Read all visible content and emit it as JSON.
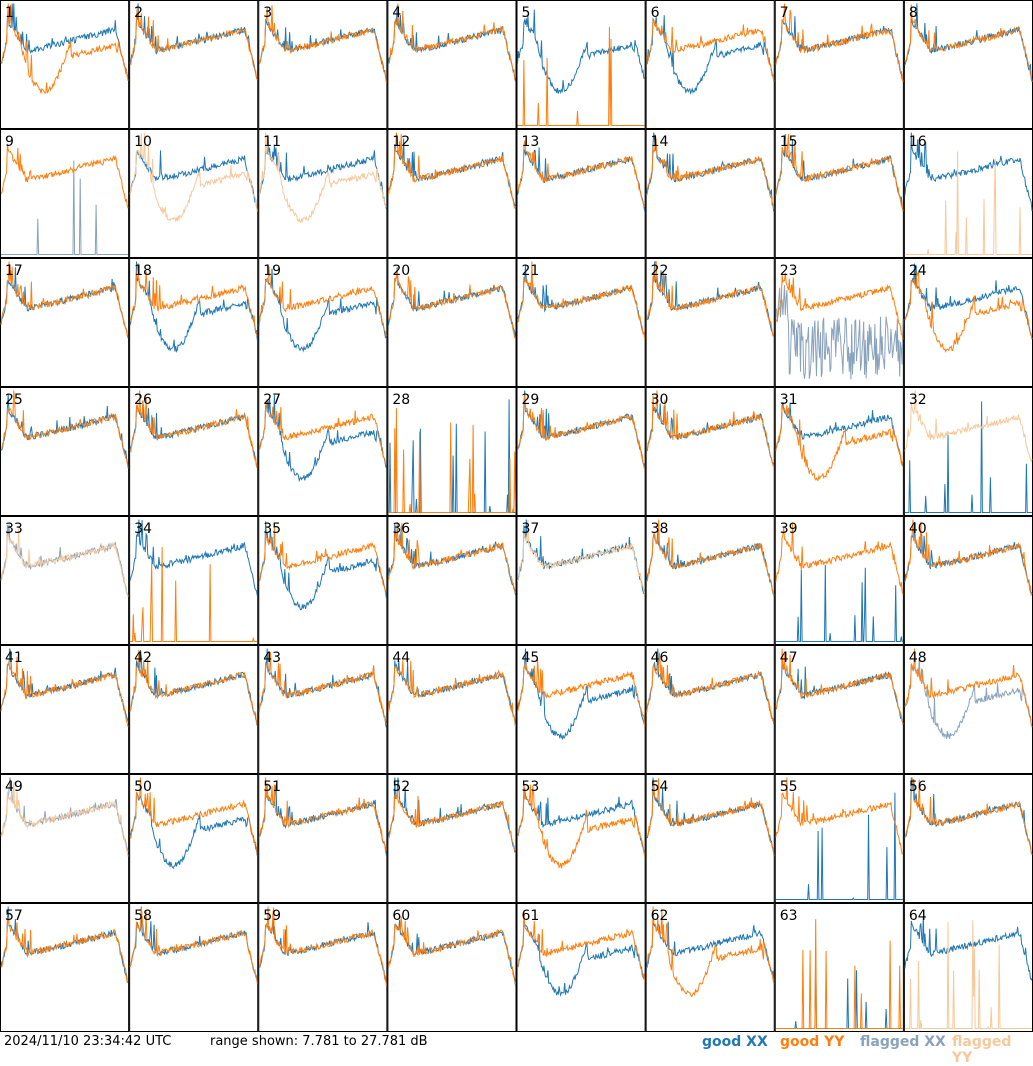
{
  "footer": {
    "timestamp": "2024/11/10 23:34:42 UTC",
    "range_text": "range shown: 7.781 to 27.781 dB",
    "legend": [
      {
        "label": "good XX",
        "color": "#1f77b4"
      },
      {
        "label": "good YY",
        "color": "#ff7f0e"
      },
      {
        "label": "flagged XX",
        "color": "#8aa3bd"
      },
      {
        "label": "flagged YY",
        "color": "#f8c89a"
      }
    ]
  },
  "chart_data": {
    "type": "line",
    "grid_rows": 8,
    "grid_cols": 8,
    "ylim": [
      7.781,
      27.781
    ],
    "units": "dB",
    "panels": [
      {
        "label": "1",
        "xx": "good",
        "yy": "good",
        "pattern_xx": "normal",
        "pattern_yy": "dip"
      },
      {
        "label": "2",
        "xx": "good",
        "yy": "good",
        "pattern_xx": "normal",
        "pattern_yy": "normal"
      },
      {
        "label": "3",
        "xx": "good",
        "yy": "good",
        "pattern_xx": "normal",
        "pattern_yy": "normal"
      },
      {
        "label": "4",
        "xx": "good",
        "yy": "good",
        "pattern_xx": "normal",
        "pattern_yy": "normal"
      },
      {
        "label": "5",
        "xx": "good",
        "yy": "good",
        "pattern_xx": "dip",
        "pattern_yy": "spike"
      },
      {
        "label": "6",
        "xx": "good",
        "yy": "good",
        "pattern_xx": "dip",
        "pattern_yy": "normal"
      },
      {
        "label": "7",
        "xx": "good",
        "yy": "good",
        "pattern_xx": "normal",
        "pattern_yy": "normal"
      },
      {
        "label": "8",
        "xx": "good",
        "yy": "good",
        "pattern_xx": "normal",
        "pattern_yy": "normal"
      },
      {
        "label": "9",
        "xx": "flagged",
        "yy": "good",
        "pattern_xx": "spike",
        "pattern_yy": "normal"
      },
      {
        "label": "10",
        "xx": "good",
        "yy": "flagged",
        "pattern_xx": "normal",
        "pattern_yy": "dip"
      },
      {
        "label": "11",
        "xx": "good",
        "yy": "flagged",
        "pattern_xx": "normal",
        "pattern_yy": "dip"
      },
      {
        "label": "12",
        "xx": "good",
        "yy": "good",
        "pattern_xx": "normal",
        "pattern_yy": "normal"
      },
      {
        "label": "13",
        "xx": "good",
        "yy": "good",
        "pattern_xx": "normal",
        "pattern_yy": "normal"
      },
      {
        "label": "14",
        "xx": "good",
        "yy": "good",
        "pattern_xx": "normal",
        "pattern_yy": "normal"
      },
      {
        "label": "15",
        "xx": "good",
        "yy": "good",
        "pattern_xx": "normal",
        "pattern_yy": "normal"
      },
      {
        "label": "16",
        "xx": "good",
        "yy": "flagged",
        "pattern_xx": "normal",
        "pattern_yy": "spike"
      },
      {
        "label": "17",
        "xx": "good",
        "yy": "good",
        "pattern_xx": "normal",
        "pattern_yy": "normal"
      },
      {
        "label": "18",
        "xx": "good",
        "yy": "good",
        "pattern_xx": "dip",
        "pattern_yy": "normal"
      },
      {
        "label": "19",
        "xx": "good",
        "yy": "good",
        "pattern_xx": "dip",
        "pattern_yy": "normal"
      },
      {
        "label": "20",
        "xx": "good",
        "yy": "good",
        "pattern_xx": "normal",
        "pattern_yy": "normal"
      },
      {
        "label": "21",
        "xx": "good",
        "yy": "good",
        "pattern_xx": "normal",
        "pattern_yy": "normal"
      },
      {
        "label": "22",
        "xx": "good",
        "yy": "good",
        "pattern_xx": "normal",
        "pattern_yy": "normal"
      },
      {
        "label": "23",
        "xx": "flagged",
        "yy": "good",
        "pattern_xx": "noise",
        "pattern_yy": "normal"
      },
      {
        "label": "24",
        "xx": "good",
        "yy": "good",
        "pattern_xx": "normal",
        "pattern_yy": "dip"
      },
      {
        "label": "25",
        "xx": "good",
        "yy": "good",
        "pattern_xx": "normal",
        "pattern_yy": "normal"
      },
      {
        "label": "26",
        "xx": "good",
        "yy": "good",
        "pattern_xx": "normal",
        "pattern_yy": "normal"
      },
      {
        "label": "27",
        "xx": "good",
        "yy": "good",
        "pattern_xx": "dip",
        "pattern_yy": "normal"
      },
      {
        "label": "28",
        "xx": "good",
        "yy": "good",
        "pattern_xx": "spike",
        "pattern_yy": "spike"
      },
      {
        "label": "29",
        "xx": "good",
        "yy": "good",
        "pattern_xx": "normal",
        "pattern_yy": "normal"
      },
      {
        "label": "30",
        "xx": "good",
        "yy": "good",
        "pattern_xx": "normal",
        "pattern_yy": "normal"
      },
      {
        "label": "31",
        "xx": "good",
        "yy": "good",
        "pattern_xx": "normal",
        "pattern_yy": "dip"
      },
      {
        "label": "32",
        "xx": "good",
        "yy": "flagged",
        "pattern_xx": "spike",
        "pattern_yy": "normal"
      },
      {
        "label": "33",
        "xx": "flagged",
        "yy": "flagged",
        "pattern_xx": "normal",
        "pattern_yy": "normal"
      },
      {
        "label": "34",
        "xx": "good",
        "yy": "good",
        "pattern_xx": "normal",
        "pattern_yy": "spike"
      },
      {
        "label": "35",
        "xx": "good",
        "yy": "good",
        "pattern_xx": "dip",
        "pattern_yy": "normal"
      },
      {
        "label": "36",
        "xx": "good",
        "yy": "good",
        "pattern_xx": "normal",
        "pattern_yy": "normal"
      },
      {
        "label": "37",
        "xx": "good",
        "yy": "flagged",
        "pattern_xx": "normal",
        "pattern_yy": "normal"
      },
      {
        "label": "38",
        "xx": "good",
        "yy": "good",
        "pattern_xx": "normal",
        "pattern_yy": "normal"
      },
      {
        "label": "39",
        "xx": "good",
        "yy": "good",
        "pattern_xx": "spike",
        "pattern_yy": "normal"
      },
      {
        "label": "40",
        "xx": "good",
        "yy": "good",
        "pattern_xx": "normal",
        "pattern_yy": "normal"
      },
      {
        "label": "41",
        "xx": "good",
        "yy": "good",
        "pattern_xx": "normal",
        "pattern_yy": "normal"
      },
      {
        "label": "42",
        "xx": "good",
        "yy": "good",
        "pattern_xx": "normal",
        "pattern_yy": "normal"
      },
      {
        "label": "43",
        "xx": "good",
        "yy": "good",
        "pattern_xx": "normal",
        "pattern_yy": "normal"
      },
      {
        "label": "44",
        "xx": "good",
        "yy": "good",
        "pattern_xx": "normal",
        "pattern_yy": "normal"
      },
      {
        "label": "45",
        "xx": "good",
        "yy": "good",
        "pattern_xx": "dip",
        "pattern_yy": "normal"
      },
      {
        "label": "46",
        "xx": "good",
        "yy": "good",
        "pattern_xx": "normal",
        "pattern_yy": "normal"
      },
      {
        "label": "47",
        "xx": "good",
        "yy": "good",
        "pattern_xx": "normal",
        "pattern_yy": "normal"
      },
      {
        "label": "48",
        "xx": "flagged",
        "yy": "good",
        "pattern_xx": "dip",
        "pattern_yy": "normal"
      },
      {
        "label": "49",
        "xx": "flagged",
        "yy": "flagged",
        "pattern_xx": "normal",
        "pattern_yy": "normal"
      },
      {
        "label": "50",
        "xx": "good",
        "yy": "good",
        "pattern_xx": "dip",
        "pattern_yy": "normal"
      },
      {
        "label": "51",
        "xx": "good",
        "yy": "good",
        "pattern_xx": "normal",
        "pattern_yy": "normal"
      },
      {
        "label": "52",
        "xx": "good",
        "yy": "good",
        "pattern_xx": "normal",
        "pattern_yy": "normal"
      },
      {
        "label": "53",
        "xx": "good",
        "yy": "good",
        "pattern_xx": "normal",
        "pattern_yy": "dip"
      },
      {
        "label": "54",
        "xx": "good",
        "yy": "good",
        "pattern_xx": "normal",
        "pattern_yy": "normal"
      },
      {
        "label": "55",
        "xx": "good",
        "yy": "good",
        "pattern_xx": "spike",
        "pattern_yy": "normal"
      },
      {
        "label": "56",
        "xx": "good",
        "yy": "good",
        "pattern_xx": "normal",
        "pattern_yy": "normal"
      },
      {
        "label": "57",
        "xx": "good",
        "yy": "good",
        "pattern_xx": "normal",
        "pattern_yy": "normal"
      },
      {
        "label": "58",
        "xx": "good",
        "yy": "good",
        "pattern_xx": "normal",
        "pattern_yy": "normal"
      },
      {
        "label": "59",
        "xx": "good",
        "yy": "good",
        "pattern_xx": "normal",
        "pattern_yy": "normal"
      },
      {
        "label": "60",
        "xx": "good",
        "yy": "good",
        "pattern_xx": "normal",
        "pattern_yy": "normal"
      },
      {
        "label": "61",
        "xx": "good",
        "yy": "good",
        "pattern_xx": "dip",
        "pattern_yy": "normal"
      },
      {
        "label": "62",
        "xx": "good",
        "yy": "good",
        "pattern_xx": "normal",
        "pattern_yy": "dip"
      },
      {
        "label": "63",
        "xx": "good",
        "yy": "good",
        "pattern_xx": "spike",
        "pattern_yy": "spike"
      },
      {
        "label": "64",
        "xx": "good",
        "yy": "flagged",
        "pattern_xx": "normal",
        "pattern_yy": "spike"
      }
    ]
  }
}
